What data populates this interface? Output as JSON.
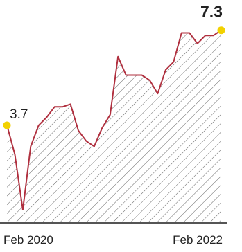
{
  "chart_data": {
    "type": "area",
    "title": "",
    "xlabel": "",
    "ylabel": "",
    "x_tick_labels": [
      "Feb 2020",
      "Feb 2022"
    ],
    "x": [
      "2020-02",
      "2020-03",
      "2020-04",
      "2020-05",
      "2020-06",
      "2020-07",
      "2020-08",
      "2020-09",
      "2020-10",
      "2020-11",
      "2020-12",
      "2021-01",
      "2021-02",
      "2021-03",
      "2021-04",
      "2021-05",
      "2021-06",
      "2021-07",
      "2021-08",
      "2021-09",
      "2021-10",
      "2021-11",
      "2021-12",
      "2022-01",
      "2022-02",
      "2022-03",
      "2022-04",
      "2022-05"
    ],
    "values": [
      3.7,
      2.6,
      0.5,
      2.9,
      3.7,
      4.0,
      4.4,
      4.4,
      4.5,
      3.5,
      3.1,
      2.9,
      3.6,
      4.1,
      6.3,
      5.6,
      5.6,
      5.6,
      5.4,
      4.9,
      5.8,
      6.1,
      7.2,
      7.2,
      6.8,
      7.1,
      7.1,
      7.3
    ],
    "point_labels": [
      {
        "index": 0,
        "text": "3.7"
      },
      {
        "index": 27,
        "text": "7.3"
      }
    ],
    "ylim": [
      0,
      8
    ],
    "grid": false,
    "line_color": "#b0303f",
    "fill_hatch_color": "#666666",
    "marker_color": "#f2d100",
    "axis_color": "#555555"
  }
}
